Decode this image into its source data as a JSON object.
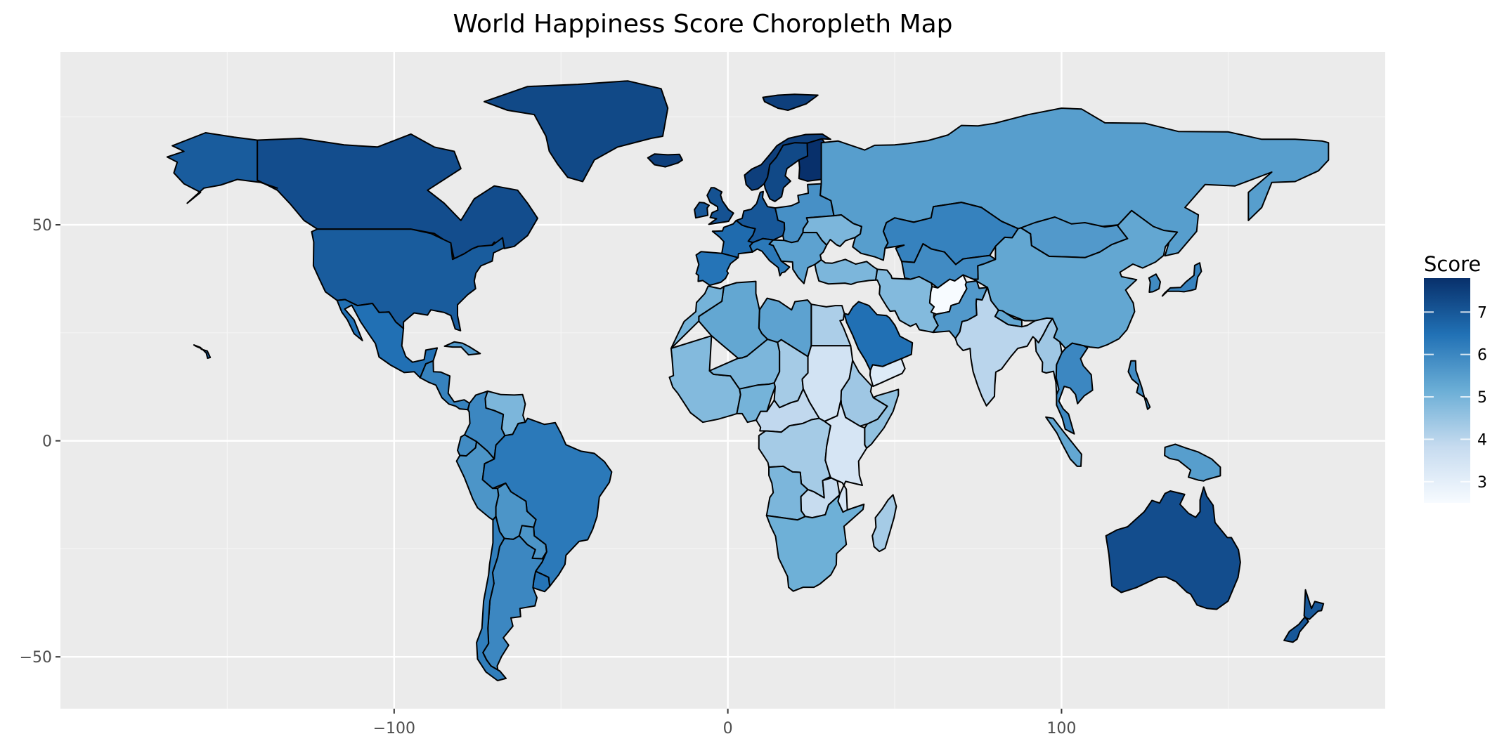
{
  "title": "World Happiness Score Choropleth Map",
  "chart_data": {
    "type": "choropleth",
    "title": "World Happiness Score Choropleth Map",
    "xlabel": "",
    "ylabel": "",
    "xlim": [
      -200,
      197
    ],
    "ylim": [
      -62,
      90
    ],
    "x_ticks": [
      -100,
      0,
      100
    ],
    "x_tick_labels": [
      "−100",
      "0",
      "100"
    ],
    "y_ticks": [
      50,
      0,
      -50
    ],
    "y_tick_labels": [
      "50",
      "0",
      "−50"
    ],
    "grid": true,
    "background": "#ebebeb",
    "legend": {
      "title": "Score",
      "placement": "right",
      "min": 2.5,
      "max": 7.8,
      "ticks": [
        7,
        6,
        5,
        4,
        3
      ],
      "tick_labels": [
        "7",
        "6",
        "5",
        "4",
        "3"
      ],
      "color_low": "#f7fbff",
      "color_high": "#08306b"
    },
    "regions": [
      {
        "name": "Canada",
        "score": 7.2
      },
      {
        "name": "United States",
        "score": 6.9
      },
      {
        "name": "Alaska",
        "score": 6.9
      },
      {
        "name": "Mexico",
        "score": 6.5
      },
      {
        "name": "Central America",
        "score": 6.1
      },
      {
        "name": "Cuba",
        "score": 5.6
      },
      {
        "name": "Greenland",
        "score": 7.3
      },
      {
        "name": "Iceland",
        "score": 7.5
      },
      {
        "name": "Venezuela",
        "score": 4.9
      },
      {
        "name": "Colombia",
        "score": 6.0
      },
      {
        "name": "Ecuador",
        "score": 5.9
      },
      {
        "name": "Peru",
        "score": 5.7
      },
      {
        "name": "Brazil",
        "score": 6.3
      },
      {
        "name": "Bolivia",
        "score": 5.7
      },
      {
        "name": "Paraguay",
        "score": 5.7
      },
      {
        "name": "Uruguay",
        "score": 6.4
      },
      {
        "name": "Argentina",
        "score": 6.0
      },
      {
        "name": "Chile",
        "score": 6.2
      },
      {
        "name": "United Kingdom",
        "score": 7.1
      },
      {
        "name": "Ireland",
        "score": 7.0
      },
      {
        "name": "Norway",
        "score": 7.5
      },
      {
        "name": "Sweden",
        "score": 7.3
      },
      {
        "name": "Finland",
        "score": 7.8
      },
      {
        "name": "Western Europe",
        "score": 7.0
      },
      {
        "name": "France",
        "score": 6.6
      },
      {
        "name": "Iberia",
        "score": 6.4
      },
      {
        "name": "Italy",
        "score": 6.3
      },
      {
        "name": "Eastern Europe",
        "score": 5.8
      },
      {
        "name": "Ukraine",
        "score": 4.9
      },
      {
        "name": "Balkans",
        "score": 5.4
      },
      {
        "name": "Turkey",
        "score": 4.9
      },
      {
        "name": "Russia",
        "score": 5.5
      },
      {
        "name": "Kazakhstan",
        "score": 6.1
      },
      {
        "name": "Central Asia",
        "score": 5.9
      },
      {
        "name": "Mongolia",
        "score": 5.6
      },
      {
        "name": "China",
        "score": 5.3
      },
      {
        "name": "Japan",
        "score": 6.1
      },
      {
        "name": "South Korea",
        "score": 5.9
      },
      {
        "name": "Iran",
        "score": 4.8
      },
      {
        "name": "Afghanistan",
        "score": 2.5
      },
      {
        "name": "Pakistan",
        "score": 5.6
      },
      {
        "name": "India",
        "score": 4.0
      },
      {
        "name": "Nepal",
        "score": 5.3
      },
      {
        "name": "Myanmar",
        "score": 4.4
      },
      {
        "name": "Southeast Asia",
        "score": 6.0
      },
      {
        "name": "Indonesia",
        "score": 5.3
      },
      {
        "name": "Philippines",
        "score": 5.9
      },
      {
        "name": "Papua New Guinea",
        "score": 5.5
      },
      {
        "name": "Saudi Arabia",
        "score": 6.5
      },
      {
        "name": "Yemen",
        "score": 3.2
      },
      {
        "name": "Egypt",
        "score": 4.2
      },
      {
        "name": "Libya",
        "score": 5.4
      },
      {
        "name": "Algeria",
        "score": 5.3
      },
      {
        "name": "Morocco",
        "score": 5.0
      },
      {
        "name": "West Africa",
        "score": 4.8
      },
      {
        "name": "Sahel",
        "score": 4.9
      },
      {
        "name": "Nigeria",
        "score": 5.0
      },
      {
        "name": "Chad",
        "score": 4.3
      },
      {
        "name": "Sudan",
        "score": 3.5
      },
      {
        "name": "Ethiopia",
        "score": 4.4
      },
      {
        "name": "Somalia",
        "score": 4.6
      },
      {
        "name": "Central Africa",
        "score": 3.9
      },
      {
        "name": "DR Congo",
        "score": 4.3
      },
      {
        "name": "East Africa",
        "score": 3.4
      },
      {
        "name": "Angola",
        "score": 4.9
      },
      {
        "name": "Zambia",
        "score": 3.8
      },
      {
        "name": "Southern Africa",
        "score": 5.1
      },
      {
        "name": "Madagascar",
        "score": 4.3
      },
      {
        "name": "Australia",
        "score": 7.2
      },
      {
        "name": "New Zealand",
        "score": 7.0
      },
      {
        "name": "Hawaii",
        "score": 6.9
      },
      {
        "name": "Svalbard",
        "score": 7.5
      }
    ]
  }
}
